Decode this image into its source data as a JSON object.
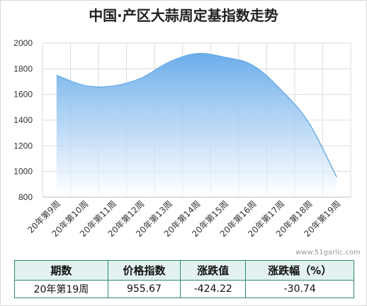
{
  "chart_data": {
    "type": "area",
    "title": "中国·产区大蒜周定基指数走势",
    "categories": [
      "20年第9周",
      "20年第10周",
      "20年第11周",
      "20年第12周",
      "20年第13周",
      "20年第14周",
      "20年第15周",
      "20年第16周",
      "20年第17周",
      "20年第18周",
      "20年第19周"
    ],
    "values": [
      1750,
      1670,
      1665,
      1725,
      1850,
      1918,
      1890,
      1827,
      1638,
      1380,
      955.67
    ],
    "ylim": [
      800,
      2000
    ],
    "yticks": [
      800,
      1000,
      1200,
      1400,
      1600,
      1800,
      2000
    ],
    "grid": true,
    "series_color": "#6aaee8"
  },
  "watermark": "www.51garlic.com",
  "table": {
    "headers": [
      "期数",
      "价格指数",
      "涨跌值",
      "涨跌幅（%）"
    ],
    "row": [
      "20年第19周",
      "955.67",
      "-424.22",
      "-30.74"
    ]
  }
}
